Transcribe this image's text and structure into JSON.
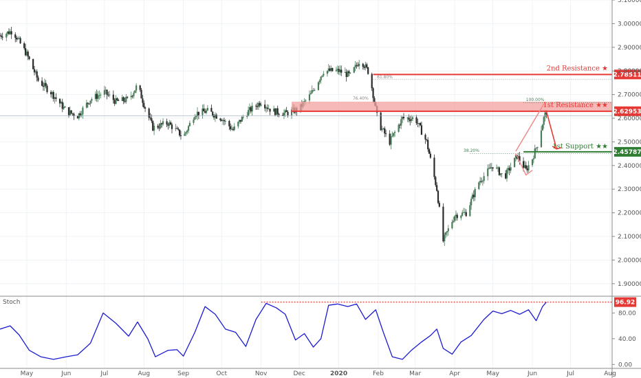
{
  "chart_data": [
    {
      "type": "candlestick",
      "ylim": [
        1.85,
        3.1
      ],
      "y_ticks": [
        1.9,
        2.0,
        2.1,
        2.2,
        2.3,
        2.4,
        2.5,
        2.6,
        2.7,
        2.8,
        2.9,
        3.0,
        3.1
      ],
      "y_tick_labels": [
        "1.90000",
        "2.00000",
        "2.10000",
        "2.20000",
        "2.30000",
        "2.40000",
        "2.50000",
        "2.60000",
        "2.70000",
        "2.80000",
        "2.90000",
        "3.00000",
        "3.10000"
      ],
      "x_ticks": [
        {
          "date": "2019-05-01",
          "label": "May"
        },
        {
          "date": "2019-06-01",
          "label": "Jun"
        },
        {
          "date": "2019-07-01",
          "label": "Jul"
        },
        {
          "date": "2019-08-01",
          "label": "Aug"
        },
        {
          "date": "2019-09-01",
          "label": "Sep"
        },
        {
          "date": "2019-10-01",
          "label": "Oct"
        },
        {
          "date": "2019-11-01",
          "label": "Nov"
        },
        {
          "date": "2019-12-01",
          "label": "Dec"
        },
        {
          "date": "2020-01-01",
          "label": "2020"
        },
        {
          "date": "2020-02-01",
          "label": "Feb"
        },
        {
          "date": "2020-03-01",
          "label": "Mar"
        },
        {
          "date": "2020-04-01",
          "label": "Apr"
        },
        {
          "date": "2020-05-01",
          "label": "May"
        },
        {
          "date": "2020-06-01",
          "label": "Jun"
        },
        {
          "date": "2020-07-01",
          "label": "Jul"
        },
        {
          "date": "2020-08-01",
          "label": "Aug"
        }
      ],
      "price_path": [
        {
          "date": "2019-04-10",
          "close": 2.95
        },
        {
          "date": "2019-04-20",
          "close": 2.97
        },
        {
          "date": "2019-05-01",
          "close": 2.87
        },
        {
          "date": "2019-05-10",
          "close": 2.76
        },
        {
          "date": "2019-05-20",
          "close": 2.71
        },
        {
          "date": "2019-06-01",
          "close": 2.63
        },
        {
          "date": "2019-06-10",
          "close": 2.61
        },
        {
          "date": "2019-06-20",
          "close": 2.68
        },
        {
          "date": "2019-07-01",
          "close": 2.71
        },
        {
          "date": "2019-07-10",
          "close": 2.67
        },
        {
          "date": "2019-07-20",
          "close": 2.68
        },
        {
          "date": "2019-07-27",
          "close": 2.74
        },
        {
          "date": "2019-08-01",
          "close": 2.66
        },
        {
          "date": "2019-08-08",
          "close": 2.56
        },
        {
          "date": "2019-08-20",
          "close": 2.58
        },
        {
          "date": "2019-09-01",
          "close": 2.52
        },
        {
          "date": "2019-09-10",
          "close": 2.62
        },
        {
          "date": "2019-09-20",
          "close": 2.63
        },
        {
          "date": "2019-10-01",
          "close": 2.6
        },
        {
          "date": "2019-10-10",
          "close": 2.55
        },
        {
          "date": "2019-10-20",
          "close": 2.62
        },
        {
          "date": "2019-11-01",
          "close": 2.67
        },
        {
          "date": "2019-11-10",
          "close": 2.63
        },
        {
          "date": "2019-11-20",
          "close": 2.62
        },
        {
          "date": "2019-12-01",
          "close": 2.64
        },
        {
          "date": "2019-12-10",
          "close": 2.7
        },
        {
          "date": "2019-12-20",
          "close": 2.8
        },
        {
          "date": "2020-01-01",
          "close": 2.8
        },
        {
          "date": "2020-01-10",
          "close": 2.78
        },
        {
          "date": "2020-01-18",
          "close": 2.85
        },
        {
          "date": "2020-01-25",
          "close": 2.79
        },
        {
          "date": "2020-02-01",
          "close": 2.58
        },
        {
          "date": "2020-02-10",
          "close": 2.5
        },
        {
          "date": "2020-02-20",
          "close": 2.6
        },
        {
          "date": "2020-03-01",
          "close": 2.6
        },
        {
          "date": "2020-03-10",
          "close": 2.5
        },
        {
          "date": "2020-03-18",
          "close": 2.3
        },
        {
          "date": "2020-03-23",
          "close": 2.08
        },
        {
          "date": "2020-04-01",
          "close": 2.19
        },
        {
          "date": "2020-04-10",
          "close": 2.2
        },
        {
          "date": "2020-04-20",
          "close": 2.33
        },
        {
          "date": "2020-05-01",
          "close": 2.4
        },
        {
          "date": "2020-05-10",
          "close": 2.35
        },
        {
          "date": "2020-05-20",
          "close": 2.44
        },
        {
          "date": "2020-05-27",
          "close": 2.38
        },
        {
          "date": "2020-06-01",
          "close": 2.43
        },
        {
          "date": "2020-06-05",
          "close": 2.49
        },
        {
          "date": "2020-06-10",
          "close": 2.6
        },
        {
          "date": "2020-06-12",
          "close": 2.63
        }
      ],
      "levels": [
        {
          "name": "2nd Resistance ★",
          "value": 2.78511,
          "label": "2.78511",
          "color": "#e53935"
        },
        {
          "name": "1st Resistance ★★",
          "value": 2.62953,
          "label": "2.62953",
          "color": "#e53935"
        },
        {
          "name": "1st Support ★★",
          "value": 2.45787,
          "label": "2.45787",
          "color": "#2e7d32"
        }
      ],
      "fib_labels": [
        "61.80%",
        "76.40%",
        "38.20%",
        "100.00%"
      ],
      "colors": {
        "up": "#4a7c59",
        "down": "#2b2b2b",
        "resistance": "#e53935",
        "support": "#2e7d32",
        "stoch": "#1a1ad4",
        "arrow": "#e53935",
        "pattern": "#ef8a8a"
      }
    },
    {
      "type": "line",
      "title": "Stoch",
      "ylim": [
        -5,
        105
      ],
      "y_ticks": [
        0,
        40,
        80
      ],
      "y_tick_labels": [
        "0.00",
        "40.00",
        "80.00"
      ],
      "last_value": 96.92,
      "last_label": "96.92",
      "series": [
        {
          "values": [
            {
              "date": "2019-04-10",
              "v": 55
            },
            {
              "date": "2019-04-18",
              "v": 60
            },
            {
              "date": "2019-04-25",
              "v": 46
            },
            {
              "date": "2019-05-03",
              "v": 22
            },
            {
              "date": "2019-05-12",
              "v": 12
            },
            {
              "date": "2019-05-22",
              "v": 8
            },
            {
              "date": "2019-06-01",
              "v": 12
            },
            {
              "date": "2019-06-10",
              "v": 15
            },
            {
              "date": "2019-06-20",
              "v": 33
            },
            {
              "date": "2019-06-30",
              "v": 80
            },
            {
              "date": "2019-07-10",
              "v": 64
            },
            {
              "date": "2019-07-20",
              "v": 44
            },
            {
              "date": "2019-07-27",
              "v": 66
            },
            {
              "date": "2019-08-04",
              "v": 40
            },
            {
              "date": "2019-08-10",
              "v": 12
            },
            {
              "date": "2019-08-20",
              "v": 22
            },
            {
              "date": "2019-08-27",
              "v": 23
            },
            {
              "date": "2019-09-01",
              "v": 13
            },
            {
              "date": "2019-09-10",
              "v": 50
            },
            {
              "date": "2019-09-18",
              "v": 90
            },
            {
              "date": "2019-09-26",
              "v": 78
            },
            {
              "date": "2019-10-04",
              "v": 55
            },
            {
              "date": "2019-10-12",
              "v": 50
            },
            {
              "date": "2019-10-20",
              "v": 28
            },
            {
              "date": "2019-10-28",
              "v": 70
            },
            {
              "date": "2019-11-05",
              "v": 95
            },
            {
              "date": "2019-11-13",
              "v": 88
            },
            {
              "date": "2019-11-20",
              "v": 78
            },
            {
              "date": "2019-11-28",
              "v": 38
            },
            {
              "date": "2019-12-05",
              "v": 48
            },
            {
              "date": "2019-12-12",
              "v": 27
            },
            {
              "date": "2019-12-18",
              "v": 40
            },
            {
              "date": "2019-12-24",
              "v": 92
            },
            {
              "date": "2019-12-31",
              "v": 94
            },
            {
              "date": "2020-01-08",
              "v": 90
            },
            {
              "date": "2020-01-15",
              "v": 94
            },
            {
              "date": "2020-01-22",
              "v": 70
            },
            {
              "date": "2020-01-30",
              "v": 85
            },
            {
              "date": "2020-02-05",
              "v": 50
            },
            {
              "date": "2020-02-12",
              "v": 12
            },
            {
              "date": "2020-02-20",
              "v": 8
            },
            {
              "date": "2020-02-27",
              "v": 22
            },
            {
              "date": "2020-03-06",
              "v": 35
            },
            {
              "date": "2020-03-13",
              "v": 45
            },
            {
              "date": "2020-03-18",
              "v": 55
            },
            {
              "date": "2020-03-23",
              "v": 25
            },
            {
              "date": "2020-03-30",
              "v": 16
            },
            {
              "date": "2020-04-06",
              "v": 35
            },
            {
              "date": "2020-04-14",
              "v": 45
            },
            {
              "date": "2020-04-24",
              "v": 70
            },
            {
              "date": "2020-05-01",
              "v": 83
            },
            {
              "date": "2020-05-08",
              "v": 79
            },
            {
              "date": "2020-05-15",
              "v": 84
            },
            {
              "date": "2020-05-22",
              "v": 78
            },
            {
              "date": "2020-05-29",
              "v": 85
            },
            {
              "date": "2020-06-04",
              "v": 68
            },
            {
              "date": "2020-06-09",
              "v": 90
            },
            {
              "date": "2020-06-12",
              "v": 96.92
            }
          ]
        }
      ]
    }
  ]
}
